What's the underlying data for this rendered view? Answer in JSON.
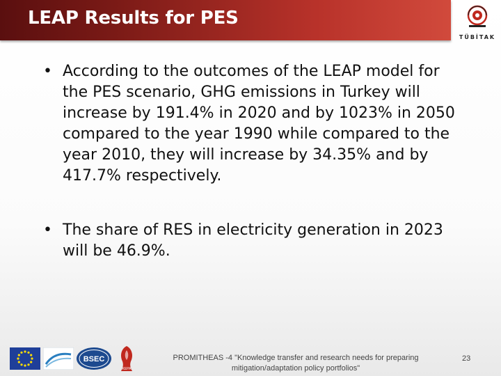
{
  "slide": {
    "title": "LEAP Results for PES"
  },
  "logo": {
    "name": "tubitak-logo",
    "text": "TÜBİTAK"
  },
  "bullets": [
    "According to the outcomes of the LEAP model for the PES scenario, GHG emissions in Turkey will increase by 191.4% in 2020 and by 1023% in 2050 compared to the year 1990 while compared to the year 2010, they will increase by 34.35% and by 417.7% respectively.",
    "The share of RES in electricity generation in 2023 will be 46.9%."
  ],
  "footer": {
    "text_line1": "PROMITHEAS -4 \"Knowledge transfer and research needs for preparing",
    "text_line2": "mitigation/adaptation policy portfolios\"",
    "page_number": "23",
    "logos": [
      "eu-flag-logo",
      "fp7-logo",
      "bsec-logo",
      "kepa-logo"
    ],
    "bsec_label": "BSEC",
    "kepa_label": "KEPA"
  },
  "colors": {
    "header_dark": "#5a0f0f",
    "header_light": "#d14a3c",
    "eu_blue": "#1f3f99",
    "eu_star": "#ffdd00"
  }
}
